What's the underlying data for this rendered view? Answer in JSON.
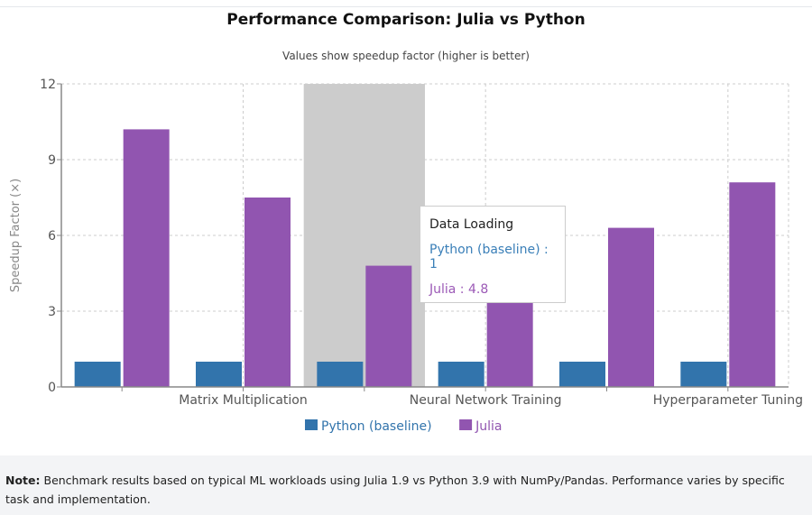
{
  "chart_data": {
    "type": "bar",
    "title": "Performance Comparison: Julia vs Python",
    "subtitle": "Values show speedup factor (higher is better)",
    "xlabel": "",
    "ylabel": "Speedup Factor (×)",
    "ylim": [
      0,
      12
    ],
    "yticks": [
      "0",
      "3",
      "6",
      "9",
      "12"
    ],
    "grid": true,
    "legend_placement": "bottom",
    "categories": [
      "",
      "Matrix Multiplication",
      "Data Loading",
      "Neural Network Training",
      "",
      "Hyperparameter Tuning"
    ],
    "visible_tick_labels": [
      "Matrix Multiplication",
      "Neural Network Training",
      "Hyperparameter Tuning"
    ],
    "series": [
      {
        "name": "Python (baseline)",
        "color": "#3274ac",
        "values": [
          1,
          1,
          1,
          1,
          1,
          1
        ]
      },
      {
        "name": "Julia",
        "color": "#9155b0",
        "values": [
          10.2,
          7.5,
          4.8,
          3.5,
          6.3,
          8.1
        ]
      }
    ],
    "highlighted_category": "Data Loading"
  },
  "tooltip": {
    "title": "Data Loading",
    "python": "Python (baseline) : 1",
    "julia": "Julia : 4.8"
  },
  "footer": {
    "bold": "Note:",
    "text": " Benchmark results based on typical ML workloads using Julia 1.9 vs Python 3.9 with NumPy/Pandas. Performance varies by specific task and implementation."
  }
}
